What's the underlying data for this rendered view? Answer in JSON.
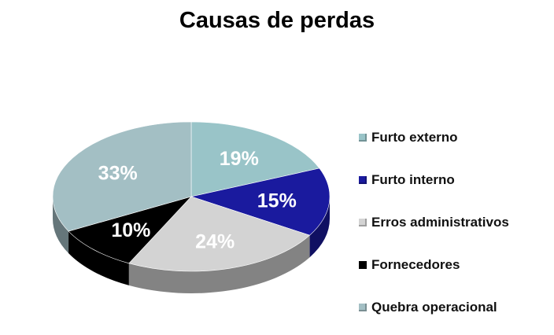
{
  "chart_data": {
    "type": "pie",
    "title": "Causas de perdas",
    "categories": [
      "Furto externo",
      "Furto interno",
      "Erros administrativos",
      "Fornecedores",
      "Quebra operacional"
    ],
    "values": [
      19,
      15,
      24,
      10,
      33
    ],
    "labels": [
      "19%",
      "15%",
      "24%",
      "10%",
      "33%"
    ],
    "legend_position": "right",
    "style": "3d",
    "colors": {
      "Furto externo": "#99c4c8",
      "Furto interno": "#1a1a9e",
      "Erros administrativos": "#d3d3d3",
      "Fornecedores": "#000000",
      "Quebra operacional": "#a3bfc4"
    },
    "label_colors": [
      "#ffffff",
      "#ffffff",
      "#ffffff",
      "#ffffff",
      "#ffffff"
    ]
  }
}
